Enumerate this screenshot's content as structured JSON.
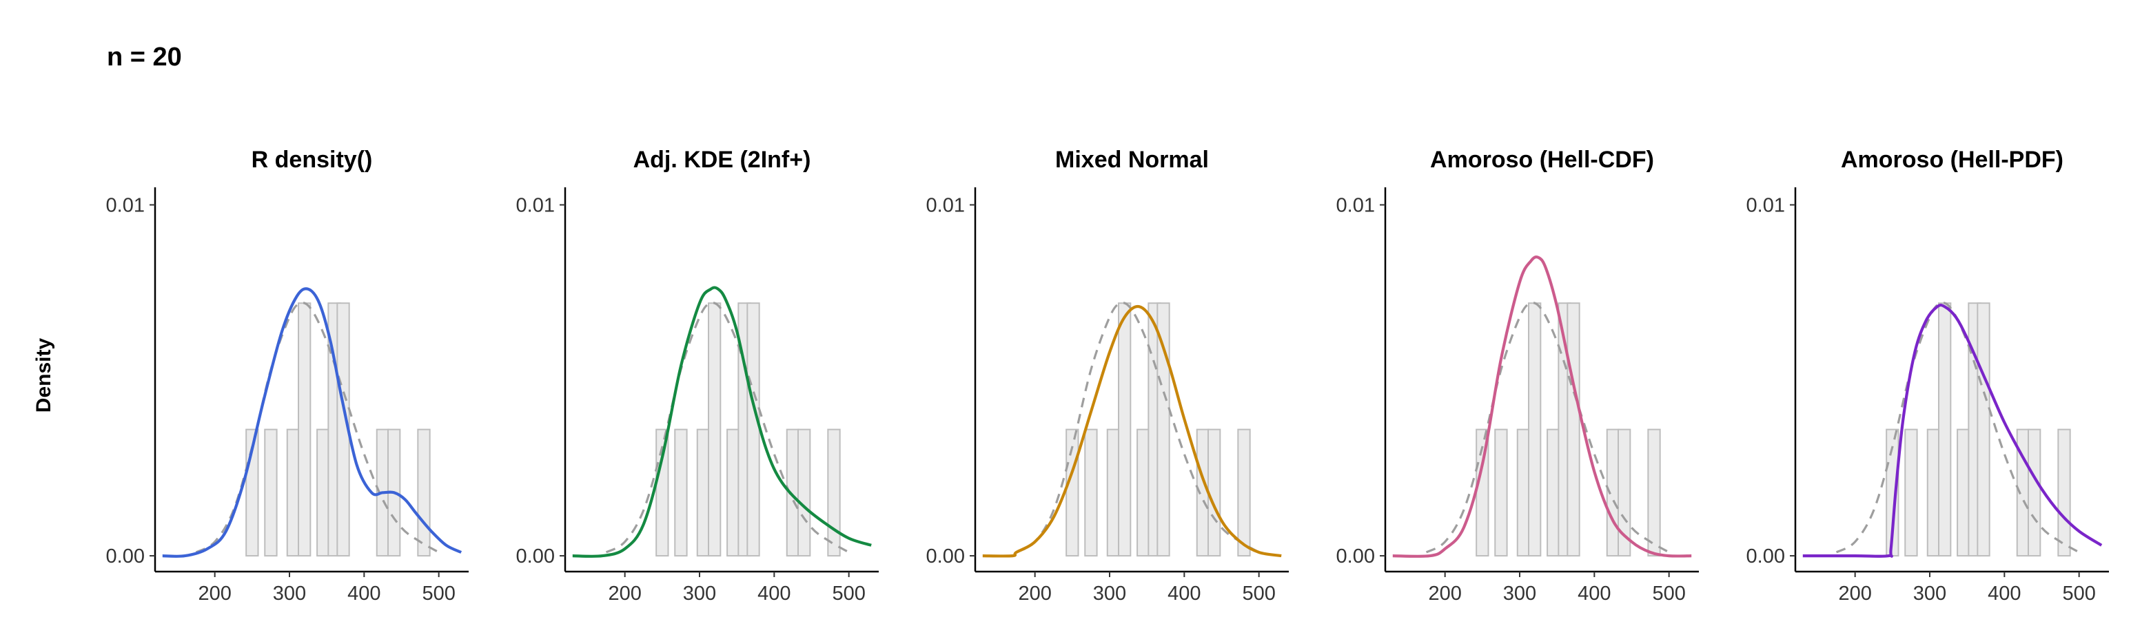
{
  "header": {
    "title": "n = 20"
  },
  "y_axis_label": "Density",
  "colors": {
    "histogram_fill": "#ebebeb",
    "histogram_stroke": "#bdbdbd",
    "reference_dashed": "#9e9e9e"
  },
  "chart_data": [
    {
      "type": "line",
      "title": "R density()",
      "color": "#3b63d6",
      "xlim": [
        120,
        540
      ],
      "ylim": [
        -0.00045,
        0.0105
      ],
      "x_ticks": [
        "200",
        "300",
        "400",
        "500"
      ],
      "y_ticks": [
        "0.00",
        "0.01"
      ],
      "histogram": [
        {
          "x": 250,
          "density": 0.0036
        },
        {
          "x": 275,
          "density": 0.0036
        },
        {
          "x": 305,
          "density": 0.0036
        },
        {
          "x": 320,
          "density": 0.0072
        },
        {
          "x": 345,
          "density": 0.0036
        },
        {
          "x": 360,
          "density": 0.0072
        },
        {
          "x": 372,
          "density": 0.0072
        },
        {
          "x": 425,
          "density": 0.0036
        },
        {
          "x": 440,
          "density": 0.0036
        },
        {
          "x": 480,
          "density": 0.0036
        }
      ],
      "reference_curve": {
        "x": [
          175,
          200,
          225,
          250,
          275,
          300,
          315,
          330,
          350,
          375,
          400,
          425,
          450,
          475,
          500
        ],
        "y": [
          0.0001,
          0.0004,
          0.0013,
          0.0031,
          0.0053,
          0.0068,
          0.0072,
          0.007,
          0.0061,
          0.0045,
          0.0029,
          0.0016,
          0.0008,
          0.0004,
          0.0001
        ]
      },
      "estimate_curve": {
        "x": [
          130,
          160,
          190,
          215,
          240,
          265,
          290,
          310,
          325,
          340,
          355,
          370,
          390,
          410,
          425,
          440,
          455,
          470,
          490,
          510,
          530
        ],
        "y": [
          0.0,
          0.0,
          0.0002,
          0.0007,
          0.0022,
          0.0044,
          0.0064,
          0.0074,
          0.0076,
          0.0072,
          0.0061,
          0.0045,
          0.0026,
          0.0018,
          0.0018,
          0.0018,
          0.0016,
          0.0012,
          0.0007,
          0.0003,
          0.0001
        ]
      }
    },
    {
      "type": "line",
      "title": "Adj. KDE (2Inf+)",
      "color": "#148a42",
      "xlim": [
        120,
        540
      ],
      "ylim": [
        -0.00045,
        0.0105
      ],
      "x_ticks": [
        "200",
        "300",
        "400",
        "500"
      ],
      "y_ticks": [
        "0.00",
        "0.01"
      ],
      "histogram": [
        {
          "x": 250,
          "density": 0.0036
        },
        {
          "x": 275,
          "density": 0.0036
        },
        {
          "x": 305,
          "density": 0.0036
        },
        {
          "x": 320,
          "density": 0.0072
        },
        {
          "x": 345,
          "density": 0.0036
        },
        {
          "x": 360,
          "density": 0.0072
        },
        {
          "x": 372,
          "density": 0.0072
        },
        {
          "x": 425,
          "density": 0.0036
        },
        {
          "x": 440,
          "density": 0.0036
        },
        {
          "x": 480,
          "density": 0.0036
        }
      ],
      "reference_curve": {
        "x": [
          175,
          200,
          225,
          250,
          275,
          300,
          315,
          330,
          350,
          375,
          400,
          425,
          450,
          475,
          500
        ],
        "y": [
          0.0001,
          0.0004,
          0.0013,
          0.0031,
          0.0053,
          0.0068,
          0.0072,
          0.007,
          0.0061,
          0.0045,
          0.0029,
          0.0016,
          0.0008,
          0.0004,
          0.0001
        ]
      },
      "estimate_curve": {
        "x": [
          130,
          170,
          200,
          225,
          250,
          275,
          300,
          315,
          325,
          335,
          350,
          370,
          390,
          410,
          440,
          470,
          500,
          530
        ],
        "y": [
          0.0,
          0.0,
          0.0002,
          0.0009,
          0.0028,
          0.0054,
          0.0072,
          0.0076,
          0.0076,
          0.0073,
          0.0064,
          0.0045,
          0.003,
          0.0021,
          0.0014,
          0.0009,
          0.0005,
          0.0003
        ]
      }
    },
    {
      "type": "line",
      "title": "Mixed Normal",
      "color": "#c8860a",
      "xlim": [
        120,
        540
      ],
      "ylim": [
        -0.00045,
        0.0105
      ],
      "x_ticks": [
        "200",
        "300",
        "400",
        "500"
      ],
      "y_ticks": [
        "0.00",
        "0.01"
      ],
      "histogram": [
        {
          "x": 250,
          "density": 0.0036
        },
        {
          "x": 275,
          "density": 0.0036
        },
        {
          "x": 305,
          "density": 0.0036
        },
        {
          "x": 320,
          "density": 0.0072
        },
        {
          "x": 345,
          "density": 0.0036
        },
        {
          "x": 360,
          "density": 0.0072
        },
        {
          "x": 372,
          "density": 0.0072
        },
        {
          "x": 425,
          "density": 0.0036
        },
        {
          "x": 440,
          "density": 0.0036
        },
        {
          "x": 480,
          "density": 0.0036
        }
      ],
      "reference_curve": {
        "x": [
          175,
          200,
          225,
          250,
          275,
          300,
          315,
          330,
          350,
          375,
          400,
          425,
          450,
          475,
          500
        ],
        "y": [
          0.0001,
          0.0004,
          0.0013,
          0.0031,
          0.0053,
          0.0068,
          0.0072,
          0.007,
          0.0061,
          0.0045,
          0.0029,
          0.0016,
          0.0008,
          0.0004,
          0.0001
        ]
      },
      "estimate_curve": {
        "x": [
          130,
          170,
          175,
          200,
          225,
          250,
          275,
          300,
          320,
          340,
          360,
          380,
          400,
          425,
          450,
          475,
          500,
          530
        ],
        "y": [
          0.0,
          0.0,
          0.0001,
          0.0004,
          0.0011,
          0.0024,
          0.0041,
          0.0058,
          0.0068,
          0.0071,
          0.0066,
          0.0054,
          0.0039,
          0.0022,
          0.001,
          0.0004,
          0.0001,
          0.0
        ]
      }
    },
    {
      "type": "line",
      "title": "Amoroso (Hell-CDF)",
      "color": "#cc5b8c",
      "xlim": [
        120,
        540
      ],
      "ylim": [
        -0.00045,
        0.0105
      ],
      "x_ticks": [
        "200",
        "300",
        "400",
        "500"
      ],
      "y_ticks": [
        "0.00",
        "0.01"
      ],
      "histogram": [
        {
          "x": 250,
          "density": 0.0036
        },
        {
          "x": 275,
          "density": 0.0036
        },
        {
          "x": 305,
          "density": 0.0036
        },
        {
          "x": 320,
          "density": 0.0072
        },
        {
          "x": 345,
          "density": 0.0036
        },
        {
          "x": 360,
          "density": 0.0072
        },
        {
          "x": 372,
          "density": 0.0072
        },
        {
          "x": 425,
          "density": 0.0036
        },
        {
          "x": 440,
          "density": 0.0036
        },
        {
          "x": 480,
          "density": 0.0036
        }
      ],
      "reference_curve": {
        "x": [
          175,
          200,
          225,
          250,
          275,
          300,
          315,
          330,
          350,
          375,
          400,
          425,
          450,
          475,
          500
        ],
        "y": [
          0.0001,
          0.0004,
          0.0013,
          0.0031,
          0.0053,
          0.0068,
          0.0072,
          0.007,
          0.0061,
          0.0045,
          0.0029,
          0.0016,
          0.0008,
          0.0004,
          0.0001
        ]
      },
      "estimate_curve": {
        "x": [
          130,
          180,
          200,
          225,
          250,
          275,
          300,
          315,
          325,
          335,
          350,
          375,
          400,
          425,
          450,
          475,
          500,
          530
        ],
        "y": [
          0.0,
          0.0,
          0.0002,
          0.0008,
          0.0026,
          0.0056,
          0.0078,
          0.0084,
          0.0085,
          0.0082,
          0.0071,
          0.0046,
          0.0024,
          0.001,
          0.0004,
          0.0001,
          0.0,
          0.0
        ]
      }
    },
    {
      "type": "line",
      "title": "Amoroso (Hell-PDF)",
      "color": "#7a25c9",
      "xlim": [
        120,
        540
      ],
      "ylim": [
        -0.00045,
        0.0105
      ],
      "x_ticks": [
        "200",
        "300",
        "400",
        "500"
      ],
      "y_ticks": [
        "0.00",
        "0.01"
      ],
      "histogram": [
        {
          "x": 250,
          "density": 0.0036
        },
        {
          "x": 275,
          "density": 0.0036
        },
        {
          "x": 305,
          "density": 0.0036
        },
        {
          "x": 320,
          "density": 0.0072
        },
        {
          "x": 345,
          "density": 0.0036
        },
        {
          "x": 360,
          "density": 0.0072
        },
        {
          "x": 372,
          "density": 0.0072
        },
        {
          "x": 425,
          "density": 0.0036
        },
        {
          "x": 440,
          "density": 0.0036
        },
        {
          "x": 480,
          "density": 0.0036
        }
      ],
      "reference_curve": {
        "x": [
          175,
          200,
          225,
          250,
          275,
          300,
          315,
          330,
          350,
          375,
          400,
          425,
          450,
          475,
          500
        ],
        "y": [
          0.0001,
          0.0004,
          0.0013,
          0.0031,
          0.0053,
          0.0068,
          0.0072,
          0.007,
          0.0061,
          0.0045,
          0.0029,
          0.0016,
          0.0008,
          0.0004,
          0.0001
        ]
      },
      "estimate_curve": {
        "x": [
          130,
          200,
          245,
          248,
          255,
          265,
          280,
          295,
          310,
          320,
          335,
          350,
          375,
          400,
          425,
          450,
          475,
          500,
          530
        ],
        "y": [
          0.0,
          0.0,
          0.0,
          0.0002,
          0.002,
          0.004,
          0.0058,
          0.0067,
          0.0071,
          0.0071,
          0.0068,
          0.0062,
          0.005,
          0.0038,
          0.0028,
          0.0019,
          0.0012,
          0.0007,
          0.0003
        ]
      }
    }
  ]
}
